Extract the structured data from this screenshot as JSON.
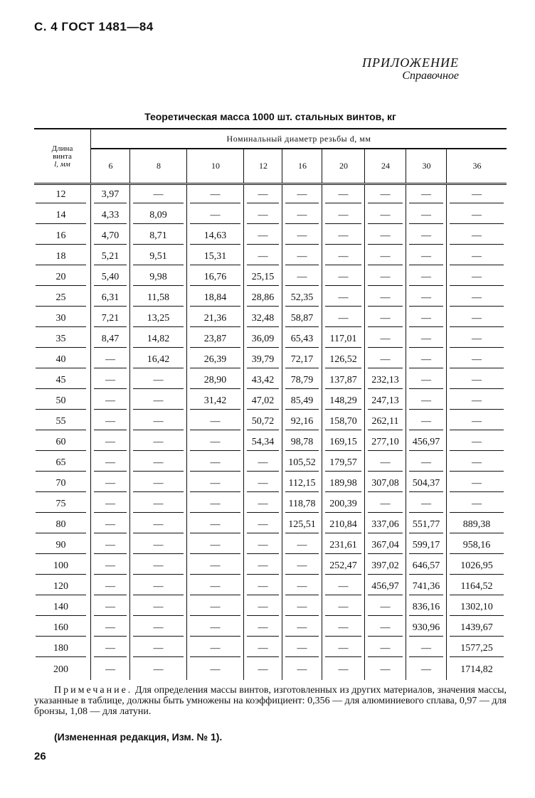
{
  "header": {
    "page_ref": "С. 4 ГОСТ 1481—84"
  },
  "appendix": {
    "title": "ПРИЛОЖЕНИЕ",
    "subtitle": "Справочное"
  },
  "table": {
    "caption": "Теоретическая масса 1000 шт. стальных винтов, кг",
    "length_header": [
      "Длина",
      "винта",
      "l, мм"
    ],
    "diameter_header": "Номинальный диаметр резьбы d, мм",
    "diameters": [
      "6",
      "8",
      "10",
      "12",
      "16",
      "20",
      "24",
      "30",
      "36"
    ],
    "rows": [
      [
        "12",
        "3,97",
        "—",
        "—",
        "—",
        "—",
        "—",
        "—",
        "—",
        "—"
      ],
      [
        "14",
        "4,33",
        "8,09",
        "—",
        "—",
        "—",
        "—",
        "—",
        "—",
        "—"
      ],
      [
        "16",
        "4,70",
        "8,71",
        "14,63",
        "—",
        "—",
        "—",
        "—",
        "—",
        "—"
      ],
      [
        "18",
        "5,21",
        "9,51",
        "15,31",
        "—",
        "—",
        "—",
        "—",
        "—",
        "—"
      ],
      [
        "20",
        "5,40",
        "9,98",
        "16,76",
        "25,15",
        "—",
        "—",
        "—",
        "—",
        "—"
      ],
      [
        "25",
        "6,31",
        "11,58",
        "18,84",
        "28,86",
        "52,35",
        "—",
        "—",
        "—",
        "—"
      ],
      [
        "30",
        "7,21",
        "13,25",
        "21,36",
        "32,48",
        "58,87",
        "—",
        "—",
        "—",
        "—"
      ],
      [
        "35",
        "8,47",
        "14,82",
        "23,87",
        "36,09",
        "65,43",
        "117,01",
        "—",
        "—",
        "—"
      ],
      [
        "40",
        "—",
        "16,42",
        "26,39",
        "39,79",
        "72,17",
        "126,52",
        "—",
        "—",
        "—"
      ],
      [
        "45",
        "—",
        "—",
        "28,90",
        "43,42",
        "78,79",
        "137,87",
        "232,13",
        "—",
        "—"
      ],
      [
        "50",
        "—",
        "—",
        "31,42",
        "47,02",
        "85,49",
        "148,29",
        "247,13",
        "—",
        "—"
      ],
      [
        "55",
        "—",
        "—",
        "—",
        "50,72",
        "92,16",
        "158,70",
        "262,11",
        "—",
        "—"
      ],
      [
        "60",
        "—",
        "—",
        "—",
        "54,34",
        "98,78",
        "169,15",
        "277,10",
        "456,97",
        "—"
      ],
      [
        "65",
        "—",
        "—",
        "—",
        "—",
        "105,52",
        "179,57",
        "—",
        "—",
        "—"
      ],
      [
        "70",
        "—",
        "—",
        "—",
        "—",
        "112,15",
        "189,98",
        "307,08",
        "504,37",
        "—"
      ],
      [
        "75",
        "—",
        "—",
        "—",
        "—",
        "118,78",
        "200,39",
        "—",
        "—",
        "—"
      ],
      [
        "80",
        "—",
        "—",
        "—",
        "—",
        "125,51",
        "210,84",
        "337,06",
        "551,77",
        "889,38"
      ],
      [
        "90",
        "—",
        "—",
        "—",
        "—",
        "—",
        "231,61",
        "367,04",
        "599,17",
        "958,16"
      ],
      [
        "100",
        "—",
        "—",
        "—",
        "—",
        "—",
        "252,47",
        "397,02",
        "646,57",
        "1026,95"
      ],
      [
        "120",
        "—",
        "—",
        "—",
        "—",
        "—",
        "—",
        "456,97",
        "741,36",
        "1164,52"
      ],
      [
        "140",
        "—",
        "—",
        "—",
        "—",
        "—",
        "—",
        "—",
        "836,16",
        "1302,10"
      ],
      [
        "160",
        "—",
        "—",
        "—",
        "—",
        "—",
        "—",
        "—",
        "930,96",
        "1439,67"
      ],
      [
        "180",
        "—",
        "—",
        "—",
        "—",
        "—",
        "—",
        "—",
        "—",
        "1577,25"
      ],
      [
        "200",
        "—",
        "—",
        "—",
        "—",
        "—",
        "—",
        "—",
        "—",
        "1714,82"
      ]
    ]
  },
  "note": {
    "label": "Примечание.",
    "text": " Для определения массы винтов, изготовленных из других материалов, значения массы, указанные в таблице, должны быть умножены на коэффициент: 0,356 — для алюминиевого сплава, 0,97 — для бронзы, 1,08 — для латуни."
  },
  "amendment": "(Измененная редакция, Изм. № 1).",
  "page_number": "26"
}
